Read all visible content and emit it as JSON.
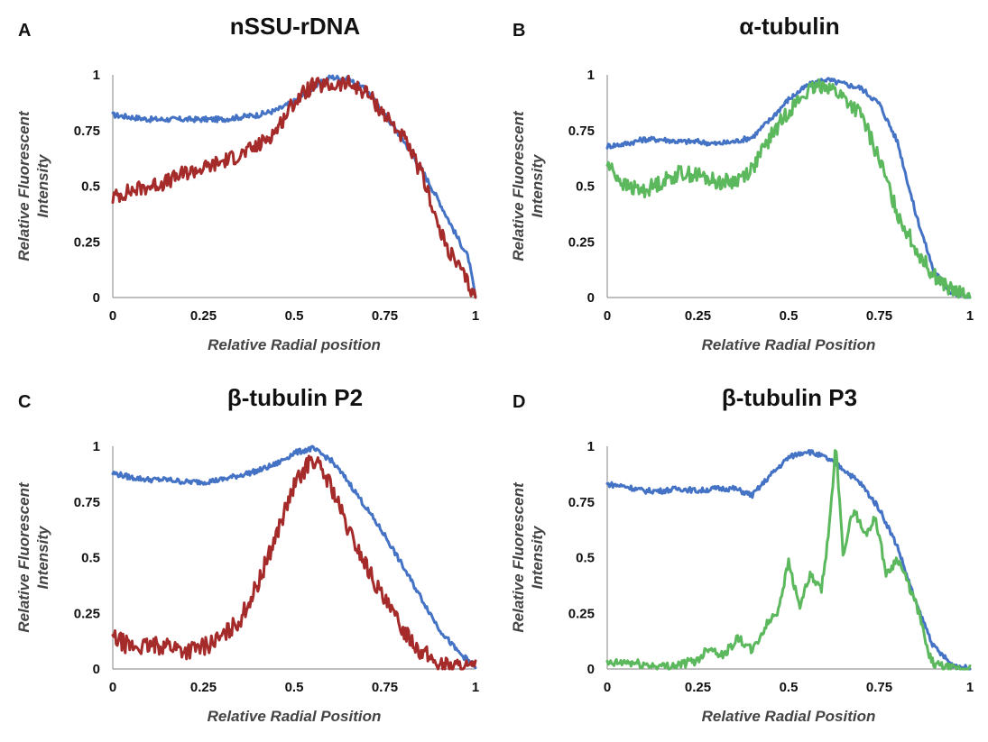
{
  "chart_data": [
    {
      "panel": "A",
      "type": "line",
      "title": "nSSU-rDNA",
      "xlabel": "Relative Radial position",
      "ylabel": [
        "Relative Fluorescent",
        "Intensity"
      ],
      "xlim": [
        0,
        1
      ],
      "ylim": [
        0,
        1
      ],
      "xticks": [
        "0",
        "0.25",
        "0.5",
        "0.75",
        "1"
      ],
      "yticks": [
        "0",
        "0.25",
        "0.5",
        "0.75",
        "1"
      ],
      "grid": false,
      "series": [
        {
          "color": "#4472c4",
          "noise": 0.012,
          "x": [
            0,
            0.05,
            0.1,
            0.2,
            0.3,
            0.4,
            0.45,
            0.5,
            0.55,
            0.6,
            0.65,
            0.7,
            0.75,
            0.8,
            0.85,
            0.9,
            0.95,
            0.98,
            1
          ],
          "values": [
            0.82,
            0.81,
            0.8,
            0.8,
            0.8,
            0.82,
            0.84,
            0.88,
            0.94,
            0.99,
            0.98,
            0.93,
            0.82,
            0.71,
            0.58,
            0.43,
            0.27,
            0.18,
            0.0
          ]
        },
        {
          "color": "#a52a2a",
          "noise": 0.035,
          "x": [
            0,
            0.05,
            0.1,
            0.15,
            0.2,
            0.25,
            0.3,
            0.35,
            0.4,
            0.45,
            0.5,
            0.55,
            0.6,
            0.65,
            0.7,
            0.75,
            0.8,
            0.85,
            0.88,
            0.9,
            0.93,
            0.96,
            1
          ],
          "values": [
            0.45,
            0.48,
            0.5,
            0.52,
            0.56,
            0.58,
            0.61,
            0.64,
            0.68,
            0.75,
            0.88,
            0.95,
            0.95,
            0.96,
            0.92,
            0.82,
            0.72,
            0.56,
            0.42,
            0.3,
            0.2,
            0.12,
            0.0
          ]
        }
      ]
    },
    {
      "panel": "B",
      "type": "line",
      "title": "α-tubulin",
      "xlabel": "Relative Radial Position",
      "ylabel": [
        "Relative Fluorescent",
        "Intensity"
      ],
      "xlim": [
        0,
        1
      ],
      "ylim": [
        0,
        1
      ],
      "xticks": [
        "0",
        "0.25",
        "0.5",
        "0.75",
        "1"
      ],
      "yticks": [
        "0",
        "0.25",
        "0.5",
        "0.75",
        "1"
      ],
      "grid": false,
      "series": [
        {
          "color": "#4472c4",
          "noise": 0.012,
          "x": [
            0,
            0.05,
            0.1,
            0.15,
            0.2,
            0.25,
            0.3,
            0.35,
            0.4,
            0.45,
            0.5,
            0.55,
            0.6,
            0.65,
            0.7,
            0.75,
            0.8,
            0.85,
            0.9,
            0.95,
            1
          ],
          "values": [
            0.68,
            0.69,
            0.71,
            0.71,
            0.7,
            0.7,
            0.69,
            0.7,
            0.72,
            0.8,
            0.89,
            0.95,
            0.98,
            0.96,
            0.94,
            0.87,
            0.7,
            0.38,
            0.12,
            0.02,
            0.0
          ]
        },
        {
          "color": "#5cb85c",
          "noise": 0.035,
          "x": [
            0,
            0.05,
            0.1,
            0.15,
            0.2,
            0.25,
            0.3,
            0.35,
            0.4,
            0.45,
            0.5,
            0.55,
            0.6,
            0.65,
            0.7,
            0.75,
            0.8,
            0.85,
            0.9,
            0.95,
            1
          ],
          "values": [
            0.6,
            0.5,
            0.48,
            0.52,
            0.56,
            0.55,
            0.52,
            0.52,
            0.58,
            0.72,
            0.84,
            0.92,
            0.96,
            0.9,
            0.82,
            0.62,
            0.38,
            0.22,
            0.1,
            0.03,
            0.0
          ]
        }
      ]
    },
    {
      "panel": "C",
      "type": "line",
      "title": "β-tubulin P2",
      "xlabel": "Relative Radial Position",
      "ylabel": [
        "Relative Fluorescent",
        "Intensity"
      ],
      "xlim": [
        0,
        1
      ],
      "ylim": [
        0,
        1
      ],
      "xticks": [
        "0",
        "0.25",
        "0.5",
        "0.75",
        "1"
      ],
      "yticks": [
        "0",
        "0.25",
        "0.5",
        "0.75",
        "1"
      ],
      "grid": false,
      "series": [
        {
          "color": "#4472c4",
          "noise": 0.012,
          "x": [
            0,
            0.05,
            0.1,
            0.15,
            0.2,
            0.25,
            0.3,
            0.35,
            0.4,
            0.45,
            0.5,
            0.55,
            0.6,
            0.65,
            0.7,
            0.75,
            0.8,
            0.85,
            0.9,
            0.95,
            1
          ],
          "values": [
            0.88,
            0.86,
            0.85,
            0.85,
            0.84,
            0.84,
            0.85,
            0.87,
            0.89,
            0.92,
            0.97,
            0.99,
            0.94,
            0.84,
            0.72,
            0.6,
            0.46,
            0.32,
            0.18,
            0.08,
            0.01
          ]
        },
        {
          "color": "#a52a2a",
          "noise": 0.04,
          "x": [
            0,
            0.05,
            0.1,
            0.15,
            0.2,
            0.25,
            0.3,
            0.35,
            0.4,
            0.45,
            0.5,
            0.55,
            0.6,
            0.65,
            0.7,
            0.75,
            0.8,
            0.85,
            0.9,
            0.95,
            1
          ],
          "values": [
            0.14,
            0.1,
            0.1,
            0.11,
            0.08,
            0.1,
            0.14,
            0.22,
            0.38,
            0.6,
            0.82,
            0.95,
            0.83,
            0.62,
            0.46,
            0.3,
            0.18,
            0.08,
            0.02,
            0.01,
            0.0
          ]
        }
      ]
    },
    {
      "panel": "D",
      "type": "line",
      "title": "β-tubulin P3",
      "xlabel": "Relative Radial Position",
      "ylabel": [
        "Relative Fluorescent",
        "Intensity"
      ],
      "xlim": [
        0,
        1
      ],
      "ylim": [
        0,
        1
      ],
      "xticks": [
        "0",
        "0.25",
        "0.5",
        "0.75",
        "1"
      ],
      "yticks": [
        "0",
        "0.25",
        "0.5",
        "0.75",
        "1"
      ],
      "grid": false,
      "series": [
        {
          "color": "#4472c4",
          "noise": 0.012,
          "x": [
            0,
            0.05,
            0.1,
            0.15,
            0.2,
            0.25,
            0.3,
            0.35,
            0.4,
            0.45,
            0.5,
            0.55,
            0.6,
            0.65,
            0.7,
            0.75,
            0.8,
            0.85,
            0.9,
            0.95,
            1
          ],
          "values": [
            0.83,
            0.82,
            0.8,
            0.8,
            0.81,
            0.8,
            0.81,
            0.81,
            0.78,
            0.87,
            0.95,
            0.98,
            0.95,
            0.9,
            0.83,
            0.72,
            0.55,
            0.3,
            0.1,
            0.02,
            0.0
          ]
        },
        {
          "color": "#5cb85c",
          "noise": 0.02,
          "x": [
            0,
            0.05,
            0.1,
            0.15,
            0.2,
            0.25,
            0.28,
            0.32,
            0.36,
            0.4,
            0.44,
            0.47,
            0.5,
            0.53,
            0.56,
            0.59,
            0.61,
            0.63,
            0.65,
            0.68,
            0.71,
            0.74,
            0.77,
            0.8,
            0.83,
            0.86,
            0.88,
            0.9,
            0.95,
            1
          ],
          "values": [
            0.02,
            0.03,
            0.02,
            0.01,
            0.02,
            0.04,
            0.1,
            0.06,
            0.14,
            0.08,
            0.2,
            0.26,
            0.48,
            0.28,
            0.42,
            0.35,
            0.6,
            1.0,
            0.52,
            0.72,
            0.6,
            0.68,
            0.42,
            0.5,
            0.38,
            0.25,
            0.1,
            0.02,
            0.0,
            0.0
          ]
        }
      ]
    }
  ]
}
